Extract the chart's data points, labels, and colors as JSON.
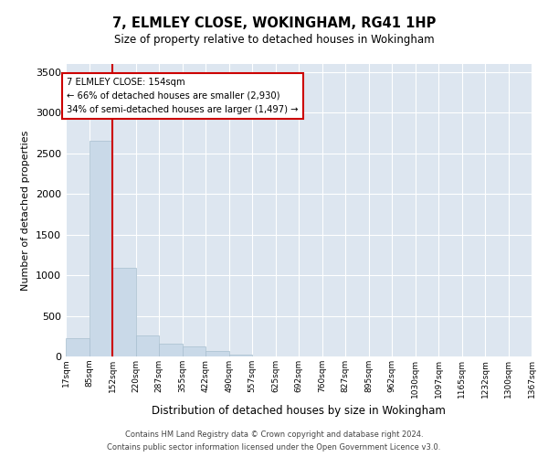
{
  "title": "7, ELMLEY CLOSE, WOKINGHAM, RG41 1HP",
  "subtitle": "Size of property relative to detached houses in Wokingham",
  "xlabel": "Distribution of detached houses by size in Wokingham",
  "ylabel": "Number of detached properties",
  "annotation_line1": "7 ELMLEY CLOSE: 154sqm",
  "annotation_line2": "← 66% of detached houses are smaller (2,930)",
  "annotation_line3": "34% of semi-detached houses are larger (1,497) →",
  "footer_line1": "Contains HM Land Registry data © Crown copyright and database right 2024.",
  "footer_line2": "Contains public sector information licensed under the Open Government Licence v3.0.",
  "bar_color": "#c9d9e8",
  "bar_edge_color": "#a8bfcf",
  "redline_color": "#cc0000",
  "background_color": "#dde6f0",
  "bin_edges": [
    17,
    85,
    152,
    220,
    287,
    355,
    422,
    490,
    557,
    625,
    692,
    760,
    827,
    895,
    962,
    1030,
    1097,
    1165,
    1232,
    1300,
    1367
  ],
  "bin_labels": [
    "17sqm",
    "85sqm",
    "152sqm",
    "220sqm",
    "287sqm",
    "355sqm",
    "422sqm",
    "490sqm",
    "557sqm",
    "625sqm",
    "692sqm",
    "760sqm",
    "827sqm",
    "895sqm",
    "962sqm",
    "1030sqm",
    "1097sqm",
    "1165sqm",
    "1232sqm",
    "1300sqm",
    "1367sqm"
  ],
  "bar_heights": [
    220,
    2650,
    1090,
    260,
    155,
    120,
    65,
    20,
    0,
    0,
    0,
    0,
    0,
    0,
    0,
    0,
    0,
    0,
    0,
    0
  ],
  "ylim": [
    0,
    3600
  ],
  "yticks": [
    0,
    500,
    1000,
    1500,
    2000,
    2500,
    3000,
    3500
  ]
}
